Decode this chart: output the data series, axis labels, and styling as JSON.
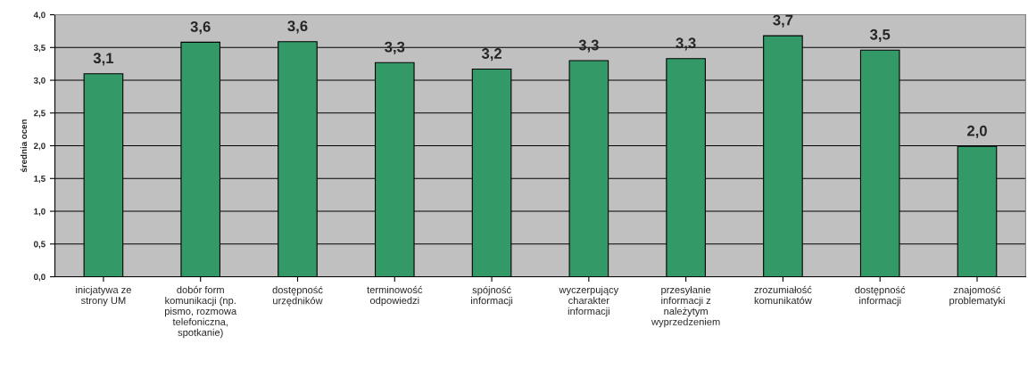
{
  "chart_data": {
    "type": "bar",
    "ylabel": "średnia ocen",
    "categories": [
      "inicjatywa ze\nstrony UM",
      "dobór form\nkomunikacji (np.\npismo, rozmowa\ntelefoniczna,\nspotkanie)",
      "dostępność\nurzędników",
      "terminowość\nodpowiedzi",
      "spójność\ninformacji",
      "wyczerpujący\ncharakter\ninformacji",
      "przesyłanie\ninformacji z\nnależytym\nwyprzedzeniem",
      "zrozumiałość\nkomunikatów",
      "dostępność\ninformacji",
      "znajomość\nproblematyki"
    ],
    "values": [
      3.1,
      3.58,
      3.59,
      3.27,
      3.17,
      3.3,
      3.33,
      3.68,
      3.46,
      1.99
    ],
    "value_labels": [
      "3,1",
      "3,6",
      "3,6",
      "3,3",
      "3,2",
      "3,3",
      "3,3",
      "3,7",
      "3,5",
      "2,0"
    ],
    "color": "#339966",
    "ylim": [
      0,
      4
    ],
    "yticks": [
      {
        "value": 0,
        "label": "0,0"
      },
      {
        "value": 0.5,
        "label": "0,5"
      },
      {
        "value": 1,
        "label": "1,0"
      },
      {
        "value": 1.5,
        "label": "1,5"
      },
      {
        "value": 2,
        "label": "2,0"
      },
      {
        "value": 2.5,
        "label": "2,5"
      },
      {
        "value": 3,
        "label": "3,0"
      },
      {
        "value": 3.5,
        "label": "3,5"
      },
      {
        "value": 4,
        "label": "4,0"
      }
    ],
    "grid": "y"
  }
}
